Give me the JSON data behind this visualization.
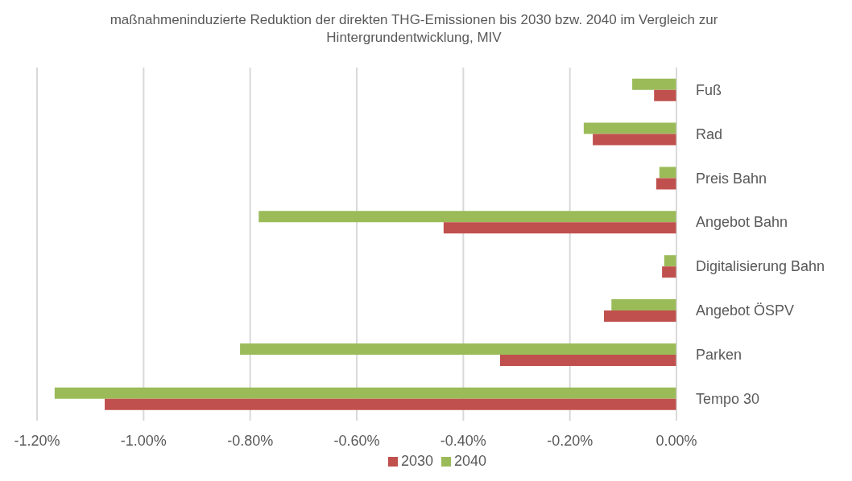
{
  "chart_data": {
    "type": "bar",
    "orientation": "horizontal",
    "title": "maßnahmeninduzierte Reduktion der direkten THG-Emissionen bis 2030 bzw. 2040 im Vergleich zur Hintergrundentwicklung, MIV",
    "categories": [
      "Fuß",
      "Rad",
      "Preis Bahn",
      "Angebot Bahn",
      "Digitalisierung Bahn",
      "Angebot ÖSPV",
      "Parken",
      "Tempo 30"
    ],
    "series": [
      {
        "name": "2040",
        "color": "#9bbb59",
        "values": [
          -0.083,
          -0.174,
          -0.032,
          -0.784,
          -0.023,
          -0.122,
          -0.819,
          -1.167
        ]
      },
      {
        "name": "2030",
        "color": "#c0504d",
        "values": [
          -0.042,
          -0.157,
          -0.038,
          -0.437,
          -0.027,
          -0.136,
          -0.331,
          -1.073
        ]
      }
    ],
    "xlim": [
      -1.2,
      0
    ],
    "xticks": [
      {
        "value": -1.2,
        "label": "-1.20%"
      },
      {
        "value": -1.0,
        "label": "-1.00%"
      },
      {
        "value": -0.8,
        "label": "-0.80%"
      },
      {
        "value": -0.6,
        "label": "-0.60%"
      },
      {
        "value": -0.4,
        "label": "-0.40%"
      },
      {
        "value": -0.2,
        "label": "-0.20%"
      },
      {
        "value": 0,
        "label": "0.00%"
      }
    ],
    "grid": "x",
    "legend": "bottom"
  }
}
